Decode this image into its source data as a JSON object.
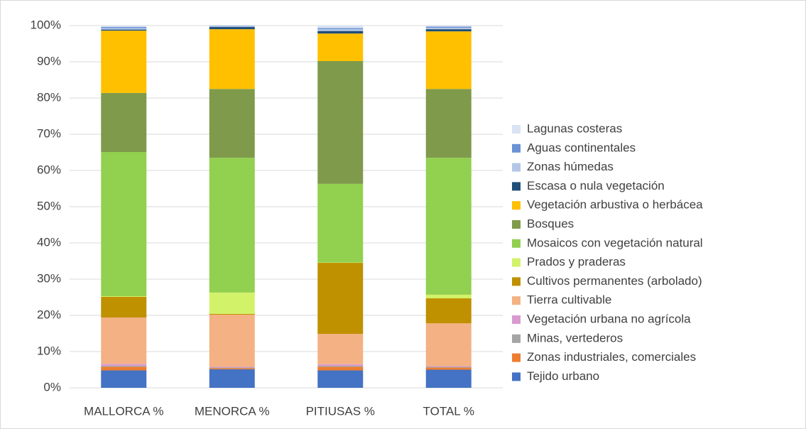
{
  "chart_data": {
    "type": "stacked_bar",
    "categories": [
      "MALLORCA %",
      "MENORCA %",
      "PITIUSAS %",
      "TOTAL %"
    ],
    "ylim": [
      0,
      100
    ],
    "yticks": [
      {
        "value": 0,
        "label": "0%"
      },
      {
        "value": 10,
        "label": "10%"
      },
      {
        "value": 20,
        "label": "20%"
      },
      {
        "value": 30,
        "label": "30%"
      },
      {
        "value": 40,
        "label": "40%"
      },
      {
        "value": 50,
        "label": "50%"
      },
      {
        "value": 60,
        "label": "60%"
      },
      {
        "value": 70,
        "label": "70%"
      },
      {
        "value": 80,
        "label": "80%"
      },
      {
        "value": 90,
        "label": "90%"
      },
      {
        "value": 100,
        "label": "100%"
      }
    ],
    "grid": true,
    "legend": "right",
    "series": [
      {
        "name": "Tejido urbano",
        "color": "#4472c4",
        "values": [
          4.8,
          5.1,
          4.8,
          5.0
        ]
      },
      {
        "name": "Zonas industriales, comerciales",
        "color": "#ed7d31",
        "values": [
          1.0,
          0.3,
          1.0,
          0.6
        ]
      },
      {
        "name": "Minas, vertederos",
        "color": "#a5a5a5",
        "values": [
          0.3,
          0.2,
          0.3,
          0.2
        ]
      },
      {
        "name": "Vegetación urbana no agrícola",
        "color": "#d99ad0",
        "values": [
          0.5,
          0.2,
          0.4,
          0.2
        ]
      },
      {
        "name": "Tierra cultivable",
        "color": "#f4b183",
        "values": [
          12.8,
          14.4,
          8.4,
          11.8
        ]
      },
      {
        "name": "Cultivos permanentes (arbolado)",
        "color": "#bf9000",
        "values": [
          5.7,
          0.2,
          19.6,
          6.9
        ]
      },
      {
        "name": "Prados y praderas",
        "color": "#d2f26a",
        "values": [
          0.2,
          5.9,
          0.1,
          1.0
        ]
      },
      {
        "name": "Mosaicos con vegetación natural",
        "color": "#92d050",
        "values": [
          39.8,
          37.2,
          21.7,
          37.8
        ]
      },
      {
        "name": "Bosques",
        "color": "#7f9a4a",
        "values": [
          16.3,
          19.0,
          33.9,
          19.0
        ]
      },
      {
        "name": "Vegetación arbustiva o herbácea",
        "color": "#ffc000",
        "values": [
          17.2,
          16.5,
          7.6,
          15.9
        ]
      },
      {
        "name": "Escasa o nula vegetación",
        "color": "#1f4e79",
        "values": [
          0.3,
          0.6,
          0.7,
          0.6
        ]
      },
      {
        "name": "Zonas húmedas",
        "color": "#b4c7e7",
        "values": [
          0.4,
          0.2,
          0.5,
          0.4
        ]
      },
      {
        "name": "Aguas continentales",
        "color": "#6a92d4",
        "values": [
          0.3,
          0.1,
          0.3,
          0.3
        ]
      },
      {
        "name": "Lagunas costeras",
        "color": "#dae3f3",
        "values": [
          0.4,
          0.1,
          0.7,
          0.3
        ]
      }
    ]
  }
}
